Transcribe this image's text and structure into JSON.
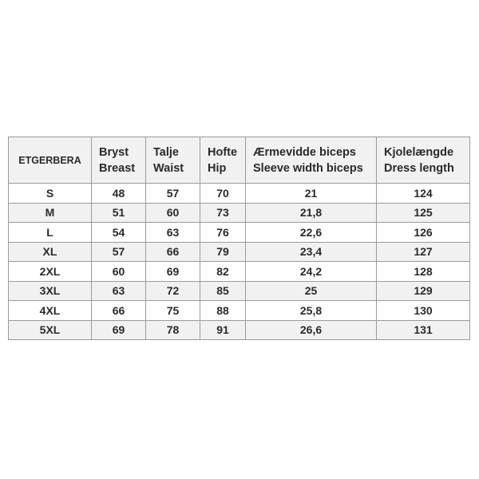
{
  "headers": [
    {
      "l1": "ETGERBERA",
      "l2": ""
    },
    {
      "l1": "Bryst",
      "l2": "Breast"
    },
    {
      "l1": "Talje",
      "l2": "Waist"
    },
    {
      "l1": "Hofte",
      "l2": "Hip"
    },
    {
      "l1": "Ærmevidde biceps",
      "l2": "Sleeve width biceps"
    },
    {
      "l1": "Kjolelængde",
      "l2": "Dress length"
    }
  ],
  "rows": [
    [
      "S",
      "48",
      "57",
      "70",
      "21",
      "124"
    ],
    [
      "M",
      "51",
      "60",
      "73",
      "21,8",
      "125"
    ],
    [
      "L",
      "54",
      "63",
      "76",
      "22,6",
      "126"
    ],
    [
      "XL",
      "57",
      "66",
      "79",
      "23,4",
      "127"
    ],
    [
      "2XL",
      "60",
      "69",
      "82",
      "24,2",
      "128"
    ],
    [
      "3XL",
      "63",
      "72",
      "85",
      "25",
      "129"
    ],
    [
      "4XL",
      "66",
      "75",
      "88",
      "25,8",
      "130"
    ],
    [
      "5XL",
      "69",
      "78",
      "91",
      "26,6",
      "131"
    ]
  ]
}
